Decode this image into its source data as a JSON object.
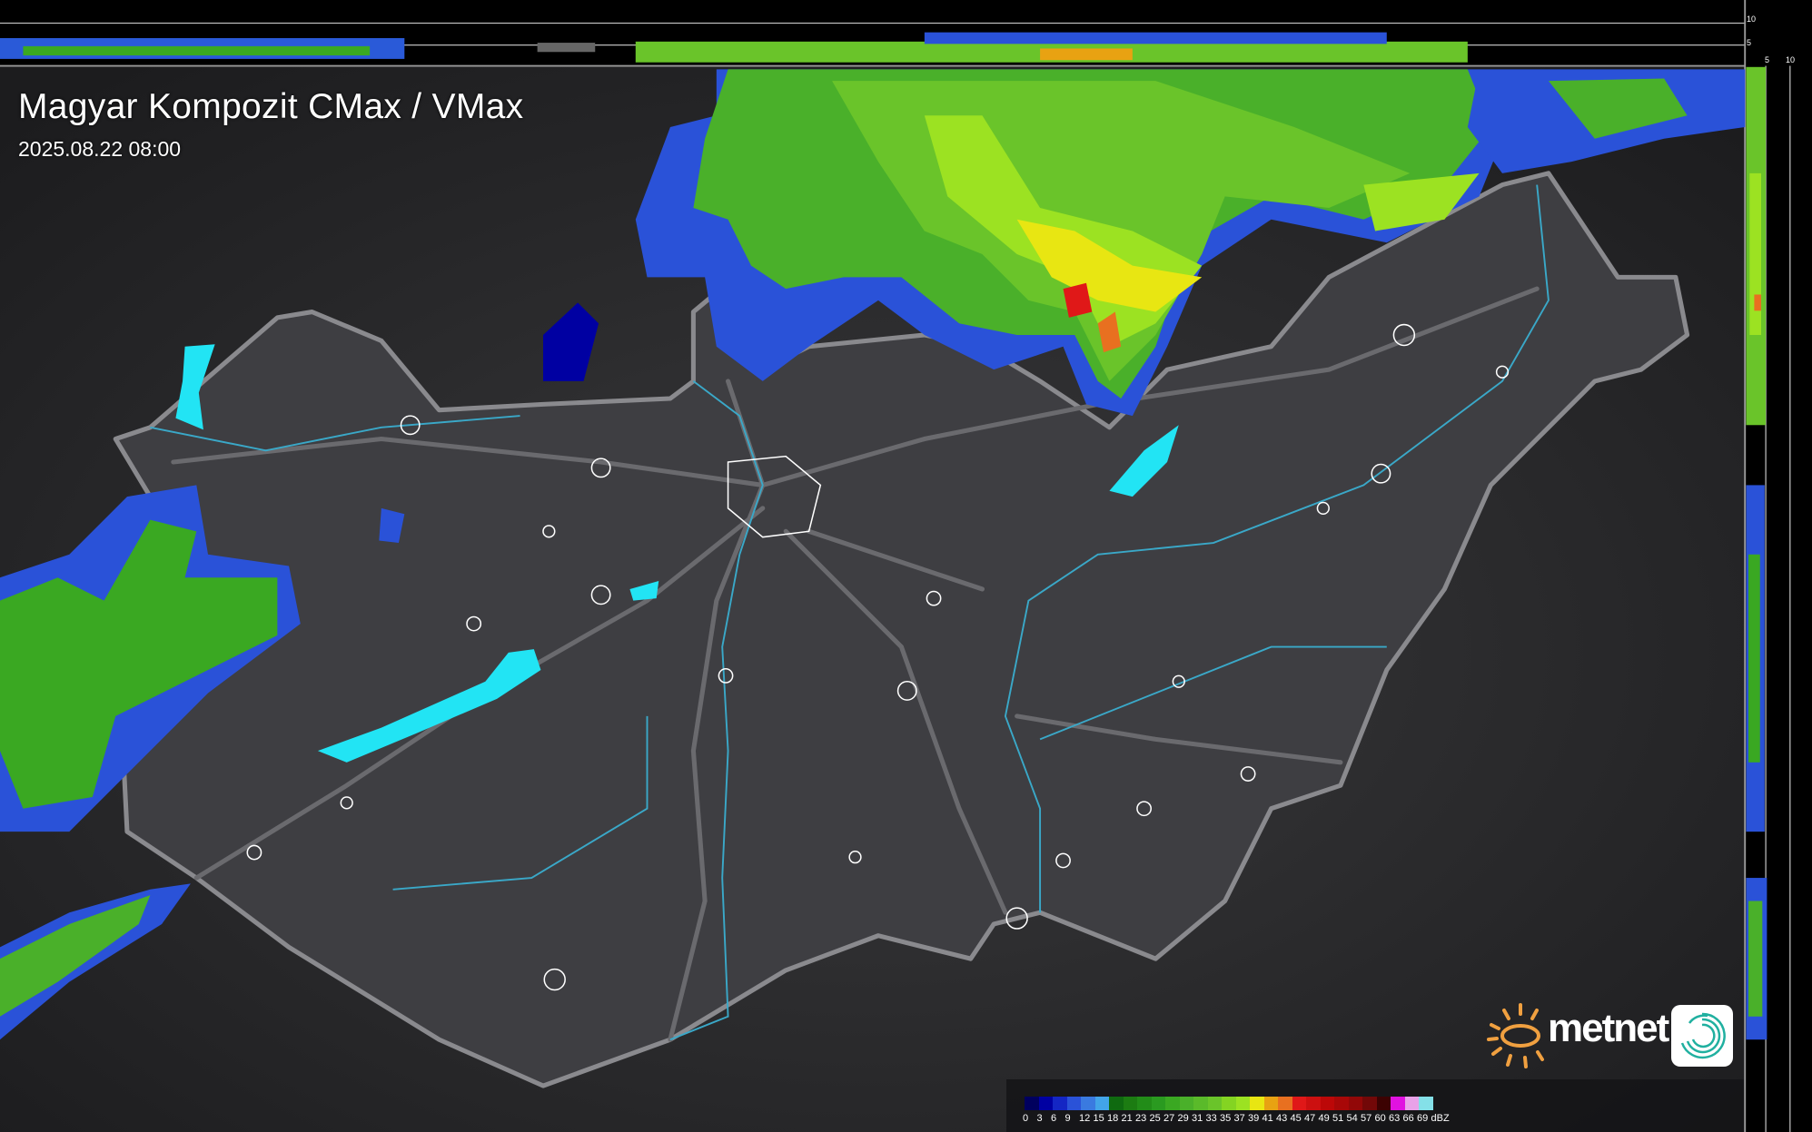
{
  "title": "Magyar Kompozit CMax / VMax",
  "timestamp": "2025.08.22 08:00",
  "side_profile_axes": {
    "top_ticks": [
      "10",
      "5"
    ],
    "right_ticks": [
      "5",
      "10"
    ]
  },
  "legend": {
    "unit": "dBZ",
    "values": [
      "0",
      "3",
      "6",
      "9",
      "12",
      "15",
      "18",
      "21",
      "23",
      "25",
      "27",
      "29",
      "31",
      "33",
      "35",
      "37",
      "39",
      "41",
      "43",
      "45",
      "47",
      "49",
      "51",
      "54",
      "57",
      "60",
      "63",
      "66",
      "69"
    ],
    "colors": [
      "#00005e",
      "#0000a2",
      "#1426c4",
      "#2a52d8",
      "#3a7ae0",
      "#42a4e8",
      "#0f6a10",
      "#1c7c12",
      "#228c18",
      "#2a9a20",
      "#3aa822",
      "#4ab02a",
      "#5aba2a",
      "#6ac42a",
      "#84d422",
      "#9ce222",
      "#e8e612",
      "#e8a212",
      "#e87020",
      "#e01818",
      "#cc1010",
      "#bc0808",
      "#a80808",
      "#920808",
      "#720808",
      "#3c0202",
      "#e012e0",
      "#e8a2e8",
      "#84e0e8"
    ]
  },
  "brand": {
    "name": "metnet",
    "accent_orange": "#f0a040",
    "accent_teal": "#20b0a0"
  },
  "map": {
    "background": "#2c2c2e",
    "country_fill": "#3e3e42",
    "border_color": "#8a8a8e",
    "river_color": "#3aa8c8",
    "lake_color": "#22e4f4",
    "city_outline_color": "#ffffff"
  }
}
